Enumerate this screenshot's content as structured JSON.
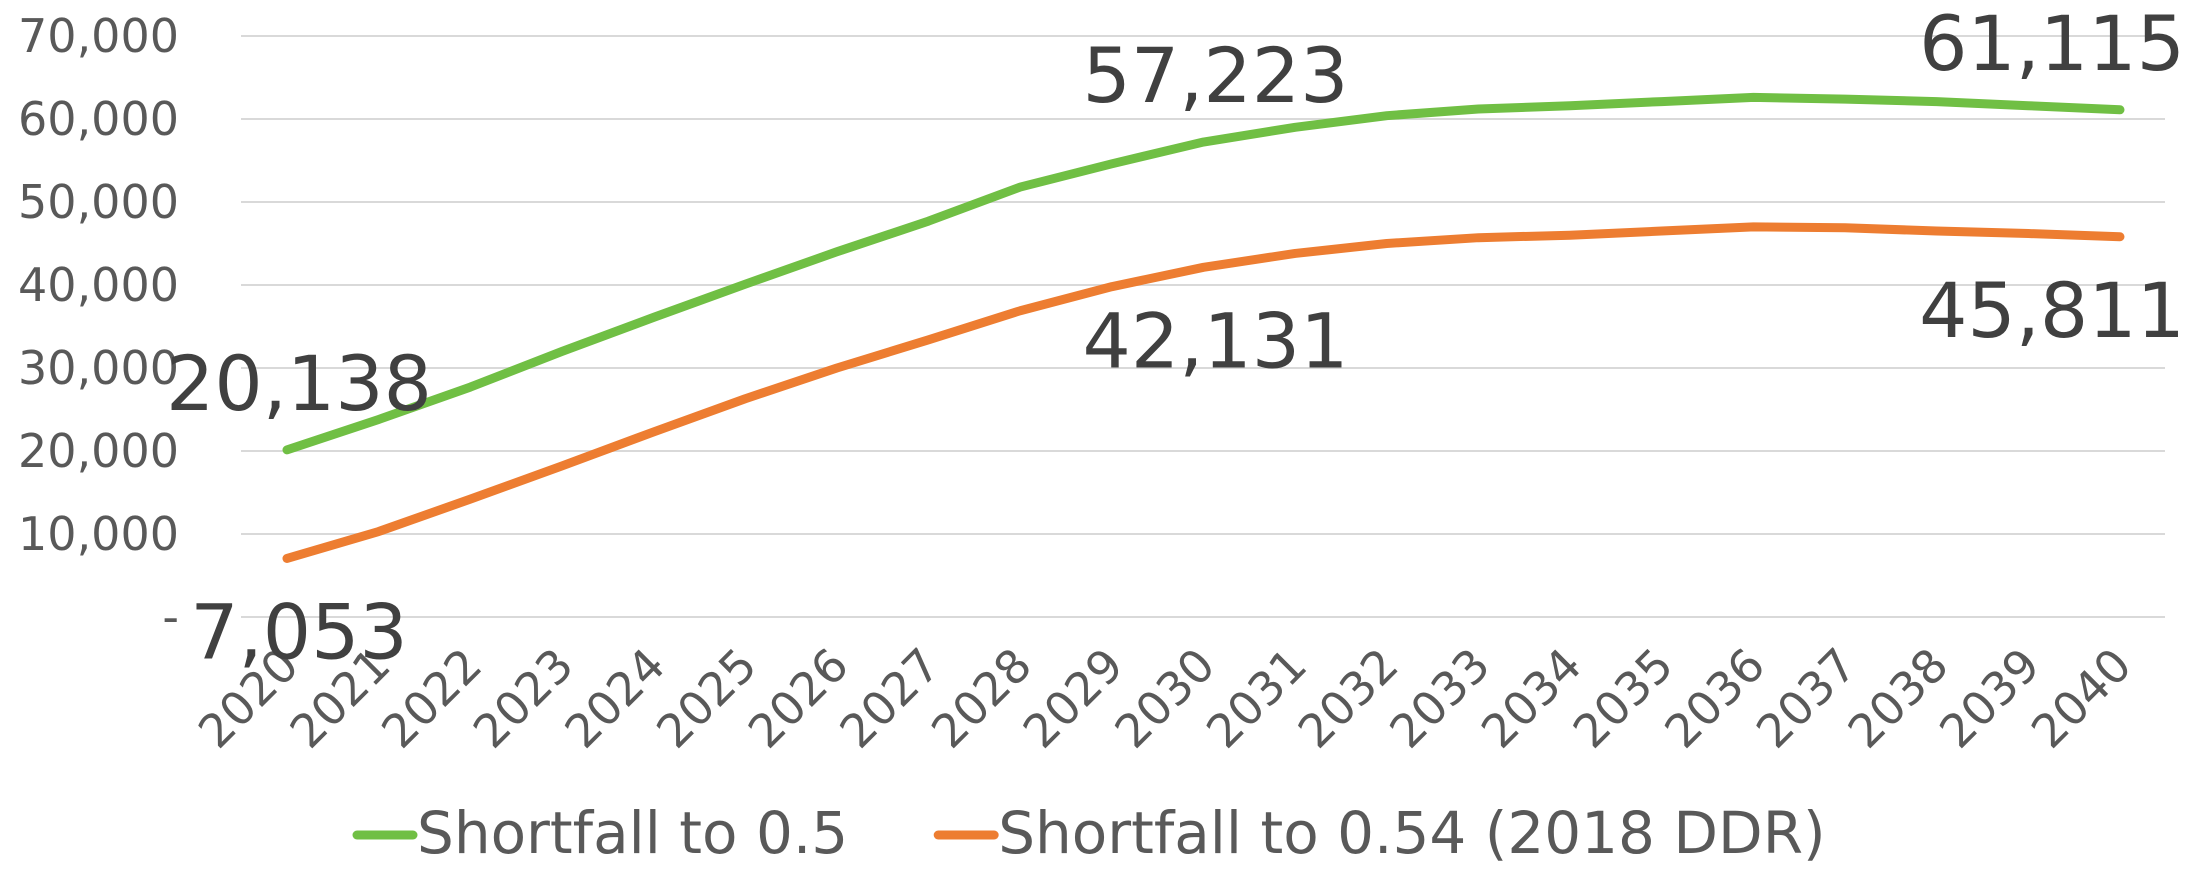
{
  "chart_data": {
    "type": "line",
    "categories": [
      "2020",
      "2021",
      "2022",
      "2023",
      "2024",
      "2025",
      "2026",
      "2027",
      "2028",
      "2029",
      "2030",
      "2031",
      "2032",
      "2033",
      "2034",
      "2035",
      "2036",
      "2037",
      "2038",
      "2039",
      "2040"
    ],
    "series": [
      {
        "name": "Shortfall to 0.5",
        "color": "#70bf44",
        "values": [
          20138,
          23800,
          27700,
          32000,
          36100,
          40100,
          44000,
          47700,
          51800,
          54600,
          57223,
          59000,
          60400,
          61200,
          61600,
          62100,
          62600,
          62400,
          62100,
          61600,
          61115
        ],
        "value_labels": [
          "20,138",
          null,
          null,
          null,
          null,
          null,
          null,
          null,
          null,
          null,
          "57,223",
          null,
          null,
          null,
          null,
          null,
          null,
          null,
          null,
          null,
          "61,115"
        ]
      },
      {
        "name": "Shortfall to 0.54 (2018 DDR)",
        "color": "#ed7d31",
        "values": [
          7053,
          10300,
          14200,
          18200,
          22300,
          26300,
          30000,
          33400,
          36900,
          39800,
          42131,
          43800,
          45000,
          45700,
          46000,
          46500,
          47000,
          46900,
          46500,
          46200,
          45811
        ],
        "value_labels": [
          "7,053",
          null,
          null,
          null,
          null,
          null,
          null,
          null,
          null,
          null,
          "42,131",
          null,
          null,
          null,
          null,
          null,
          null,
          null,
          null,
          null,
          "45,811"
        ]
      }
    ],
    "ylim": [
      0,
      70000
    ],
    "yticks": [
      {
        "value": 0,
        "label": "-"
      },
      {
        "value": 10000,
        "label": "10,000"
      },
      {
        "value": 20000,
        "label": "20,000"
      },
      {
        "value": 30000,
        "label": "30,000"
      },
      {
        "value": 40000,
        "label": "40,000"
      },
      {
        "value": 50000,
        "label": "50,000"
      },
      {
        "value": 60000,
        "label": "60,000"
      },
      {
        "value": 70000,
        "label": "70,000"
      }
    ],
    "grid": true,
    "legend": "bottom"
  }
}
